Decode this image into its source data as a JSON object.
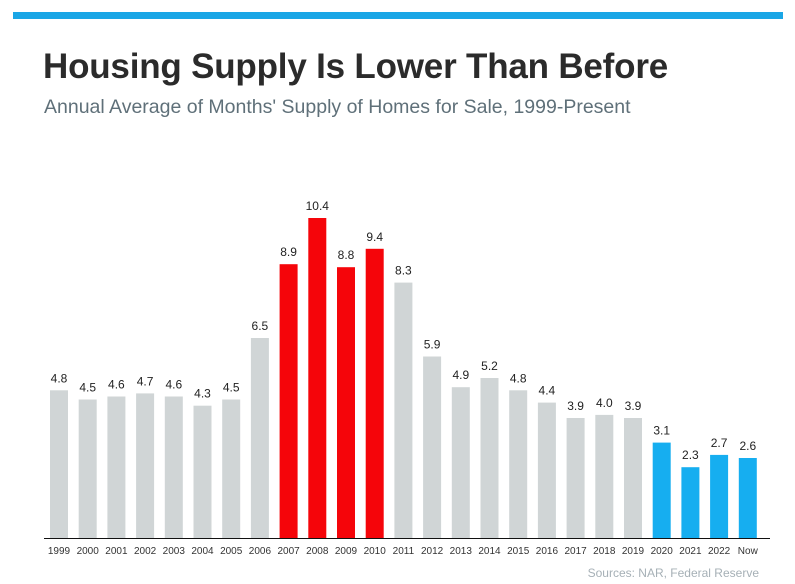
{
  "header": {
    "title": "Housing Supply Is Lower Than Before",
    "subtitle": "Annual Average of Months' Supply of Homes for Sale, 1999-Present"
  },
  "footer": {
    "source": "Sources: NAR, Federal Reserve"
  },
  "colors": {
    "accent": "#1aa6e6",
    "gray": "#d0d5d6",
    "red": "#f5050a",
    "blue": "#16aef0"
  },
  "chart_data": {
    "type": "bar",
    "title": "Housing Supply Is Lower Than Before",
    "subtitle": "Annual Average of Months' Supply of Homes for Sale, 1999-Present",
    "categories": [
      "1999",
      "2000",
      "2001",
      "2002",
      "2003",
      "2004",
      "2005",
      "2006",
      "2007",
      "2008",
      "2009",
      "2010",
      "2011",
      "2012",
      "2013",
      "2014",
      "2015",
      "2016",
      "2017",
      "2018",
      "2019",
      "2020",
      "2021",
      "2022",
      "Now"
    ],
    "values": [
      4.8,
      4.5,
      4.6,
      4.7,
      4.6,
      4.3,
      4.5,
      6.5,
      8.9,
      10.4,
      8.8,
      9.4,
      8.3,
      5.9,
      4.9,
      5.2,
      4.8,
      4.4,
      3.9,
      4.0,
      3.9,
      3.1,
      2.3,
      2.7,
      2.6
    ],
    "labels": [
      "4.8",
      "4.5",
      "4.6",
      "4.7",
      "4.6",
      "4.3",
      "4.5",
      "6.5",
      "8.9",
      "10.4",
      "8.8",
      "9.4",
      "8.3",
      "5.9",
      "4.9",
      "5.2",
      "4.8",
      "4.4",
      "3.9",
      "4.0",
      "3.9",
      "3.1",
      "2.3",
      "2.7",
      "2.6"
    ],
    "bar_colors": [
      "gray",
      "gray",
      "gray",
      "gray",
      "gray",
      "gray",
      "gray",
      "gray",
      "red",
      "red",
      "red",
      "red",
      "gray",
      "gray",
      "gray",
      "gray",
      "gray",
      "gray",
      "gray",
      "gray",
      "gray",
      "blue",
      "blue",
      "blue",
      "blue"
    ],
    "ylim": [
      0,
      10.4
    ],
    "xlabel": "",
    "ylabel": "",
    "grid": false,
    "legend": "none"
  }
}
